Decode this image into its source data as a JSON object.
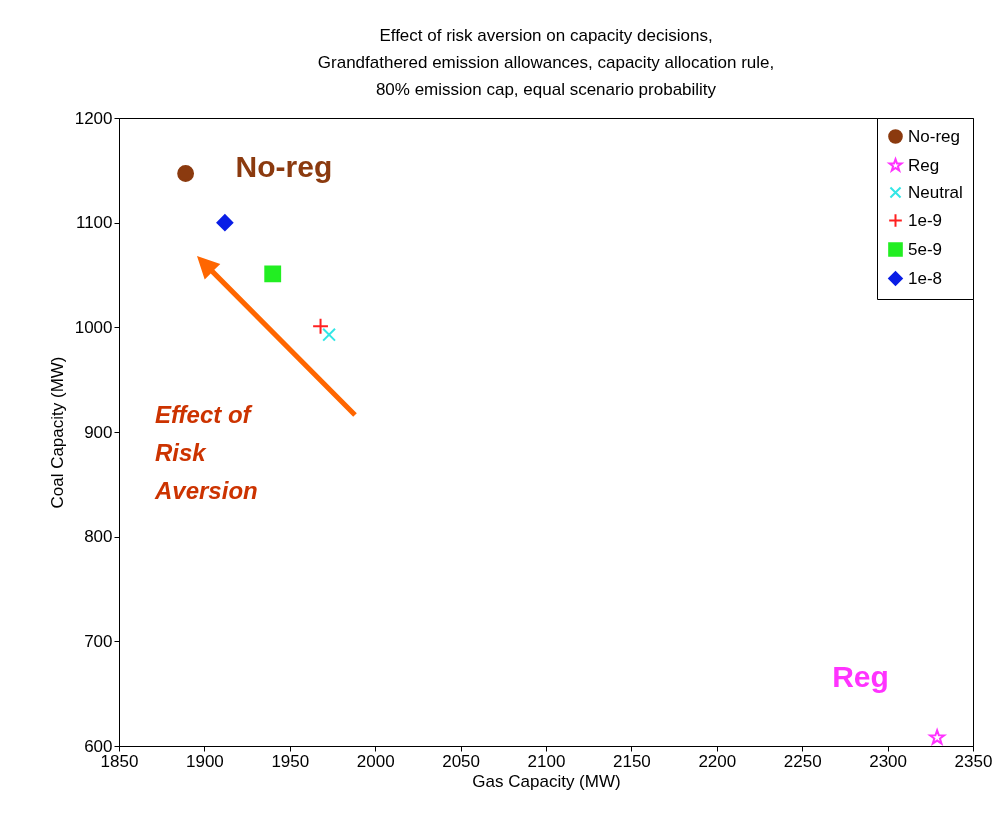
{
  "chart_data": {
    "type": "scatter",
    "title": [
      "Effect of risk aversion on capacity decisions,",
      "Grandfathered emission allowances, capacity allocation rule,",
      "80% emission cap, equal scenario probability"
    ],
    "xlabel": "Gas Capacity (MW)",
    "ylabel": "Coal Capacity (MW)",
    "xlim": [
      1850,
      2350
    ],
    "xticks": [
      1850,
      1900,
      1950,
      2000,
      2050,
      2100,
      2150,
      2200,
      2250,
      2300,
      2350
    ],
    "ylim": [
      600,
      1200
    ],
    "yticks": [
      600,
      700,
      800,
      900,
      1000,
      1100,
      1200
    ],
    "grid": false,
    "legend": "top right",
    "series": [
      {
        "name": "No-reg",
        "color": "#8b3a0f",
        "marker": "circle",
        "x": [
          1889
        ],
        "values": [
          1147
        ]
      },
      {
        "name": "Reg",
        "color": "#ff33ff",
        "marker": "star",
        "x": [
          2329
        ],
        "values": [
          608
        ]
      },
      {
        "name": "Neutral",
        "color": "#33e6e6",
        "marker": "x",
        "x": [
          1973
        ],
        "values": [
          993
        ]
      },
      {
        "name": "1e-9",
        "color": "#ff2020",
        "marker": "cross",
        "x": [
          1968
        ],
        "values": [
          1001
        ]
      },
      {
        "name": "5e-9",
        "color": "#22ee22",
        "marker": "square",
        "x": [
          1940
        ],
        "values": [
          1051
        ]
      },
      {
        "name": "1e-8",
        "color": "#0a1ee6",
        "marker": "diamond",
        "x": [
          1912
        ],
        "values": [
          1100
        ]
      }
    ],
    "annotations": [
      {
        "text": "No-reg",
        "x": 1889,
        "y": 1147
      },
      {
        "text": "Reg",
        "x": 2329,
        "y": 608
      },
      "Effect of Risk Aversion"
    ]
  }
}
